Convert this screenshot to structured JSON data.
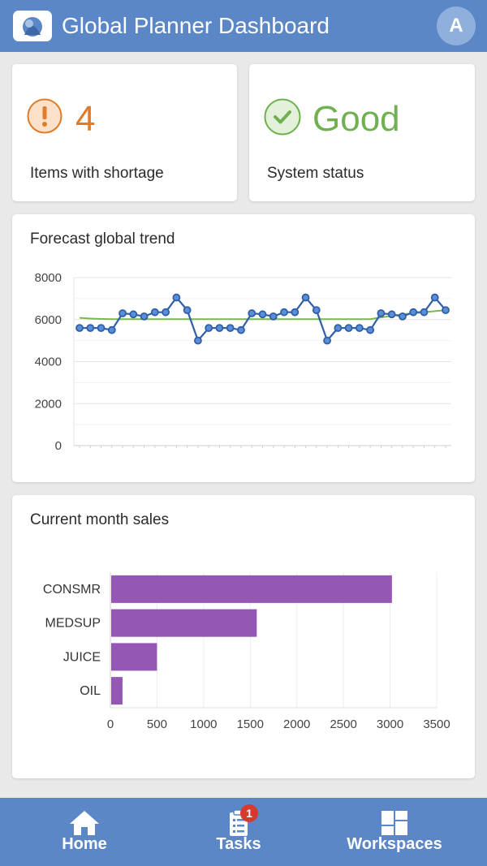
{
  "header": {
    "title": "Global Planner Dashboard",
    "avatar_initial": "A"
  },
  "kpis": {
    "shortage": {
      "value": "4",
      "label": "Items with shortage",
      "color": "#e07b2a",
      "icon": "exclamation-icon"
    },
    "status": {
      "value": "Good",
      "label": "System status",
      "color": "#6fb050",
      "icon": "check-icon"
    }
  },
  "trend_card": {
    "title": "Forecast global trend"
  },
  "sales_card": {
    "title": "Current month sales"
  },
  "chart_data": [
    {
      "type": "line",
      "ylim": [
        0,
        8000
      ],
      "yticks": [
        0,
        2000,
        4000,
        6000,
        8000
      ],
      "x": [
        1,
        2,
        3,
        4,
        5,
        6,
        7,
        8,
        9,
        10,
        11,
        12,
        13,
        14,
        15,
        16,
        17,
        18,
        19,
        20,
        21,
        22,
        23,
        24,
        25,
        26,
        27,
        28,
        29,
        30,
        31,
        32,
        33,
        34,
        35
      ],
      "series": [
        {
          "color": "#2f5fa7",
          "values": [
            5600,
            5600,
            5600,
            5500,
            6300,
            6250,
            6150,
            6350,
            6350,
            7050,
            6450,
            5000,
            5600,
            5600,
            5600,
            5500,
            6300,
            6250,
            6150,
            6350,
            6350,
            7050,
            6450,
            5000,
            5600,
            5600,
            5600,
            5500,
            6300,
            6250,
            6150,
            6350,
            6350,
            7050,
            6450
          ]
        },
        {
          "color": "#7cb84f",
          "values": [
            6080,
            6050,
            6030,
            6020,
            6020,
            6020,
            6020,
            6020,
            6020,
            6020,
            6020,
            6020,
            6020,
            6020,
            6020,
            6020,
            6020,
            6020,
            6020,
            6020,
            6020,
            6020,
            6020,
            6020,
            6020,
            6020,
            6020,
            6020,
            6100,
            6180,
            6250,
            6300,
            6350,
            6400,
            6450
          ]
        }
      ],
      "grid": true
    },
    {
      "type": "bar",
      "orientation": "horizontal",
      "categories": [
        "CONSMR",
        "MEDSUP",
        "JUICE",
        "OIL"
      ],
      "values": [
        3020,
        1570,
        500,
        130
      ],
      "xlim": [
        0,
        3500
      ],
      "xticks": [
        0,
        500,
        1000,
        1500,
        2000,
        2500,
        3000,
        3500
      ],
      "color": "#9457b4",
      "grid": true
    }
  ],
  "nav": {
    "home": {
      "label": "Home",
      "icon": "home-icon"
    },
    "tasks": {
      "label": "Tasks",
      "icon": "clipboard-icon",
      "badge": "1"
    },
    "workspaces": {
      "label": "Workspaces",
      "icon": "grid-icon"
    }
  }
}
